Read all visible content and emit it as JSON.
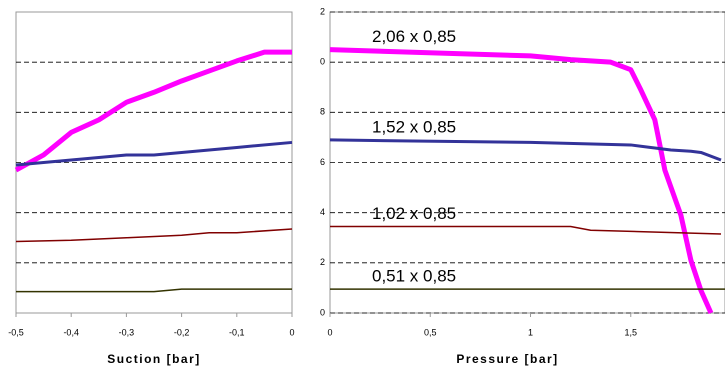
{
  "chart_data": [
    {
      "type": "line",
      "x_label": "Suction [bar]",
      "xlim": [
        -0.5,
        0
      ],
      "ylim": [
        0,
        12
      ],
      "xticks": [
        {
          "value": -0.5,
          "label": "-0,5"
        },
        {
          "value": -0.4,
          "label": "-0,4"
        },
        {
          "value": -0.3,
          "label": "-0,3"
        },
        {
          "value": -0.2,
          "label": "-0,2"
        },
        {
          "value": -0.1,
          "label": "-0,1"
        },
        0
      ],
      "yticks": [
        2,
        4,
        6,
        8,
        10
      ],
      "ytick_labels": false,
      "grid": true,
      "series": [
        {
          "color": "#ff00ff",
          "x": [
            -0.5,
            -0.45,
            -0.4,
            -0.35,
            -0.3,
            -0.25,
            -0.2,
            -0.15,
            -0.1,
            -0.05,
            0
          ],
          "values": [
            5.7,
            6.3,
            7.2,
            7.7,
            8.4,
            8.8,
            9.25,
            9.65,
            10.05,
            10.4,
            10.4
          ]
        },
        {
          "color": "#333399",
          "x": [
            -0.5,
            -0.4,
            -0.3,
            -0.25,
            -0.2,
            -0.1,
            0
          ],
          "values": [
            5.9,
            6.1,
            6.3,
            6.3,
            6.4,
            6.6,
            6.8
          ]
        },
        {
          "color": "#800000",
          "x": [
            -0.5,
            -0.4,
            -0.3,
            -0.2,
            -0.15,
            -0.1,
            0
          ],
          "values": [
            2.85,
            2.9,
            3.0,
            3.1,
            3.2,
            3.2,
            3.35
          ]
        },
        {
          "color": "#333300",
          "x": [
            -0.5,
            -0.25,
            -0.2,
            0
          ],
          "values": [
            0.85,
            0.85,
            0.95,
            0.95
          ]
        }
      ]
    },
    {
      "type": "line",
      "x_label": "Pressure [bar]",
      "xlim": [
        0,
        1.97
      ],
      "ylim": [
        0,
        12
      ],
      "xticks": [
        0,
        {
          "value": 0.5,
          "label": "0,5"
        },
        1,
        {
          "value": 1.5,
          "label": "1,5"
        }
      ],
      "yticks": [
        0,
        2,
        4,
        6,
        8,
        {
          "value": 10,
          "label": "0"
        },
        {
          "value": 12,
          "label": "2"
        }
      ],
      "ytick_labels": true,
      "grid": true,
      "series": [
        {
          "name": "2,06 x 0,85",
          "color": "#ff00ff",
          "x": [
            0,
            1.0,
            1.2,
            1.4,
            1.5,
            1.55,
            1.62,
            1.67,
            1.75,
            1.8,
            1.85,
            1.9
          ],
          "values": [
            10.5,
            10.25,
            10.1,
            10.0,
            9.7,
            8.9,
            7.7,
            5.7,
            3.9,
            2.1,
            0.9,
            0
          ]
        },
        {
          "name": "1,52 x 0,85",
          "color": "#333399",
          "x": [
            0,
            1.0,
            1.5,
            1.6,
            1.7,
            1.8,
            1.85,
            1.95
          ],
          "values": [
            6.9,
            6.8,
            6.7,
            6.6,
            6.5,
            6.45,
            6.4,
            6.1
          ]
        },
        {
          "name": "1,02 x 0,85",
          "color": "#800000",
          "x": [
            0,
            1.2,
            1.3,
            1.95
          ],
          "values": [
            3.45,
            3.45,
            3.3,
            3.15
          ]
        },
        {
          "name": "0,51 x 0,85",
          "color": "#333300",
          "x": [
            0,
            1.97
          ],
          "values": [
            0.95,
            0.95
          ]
        }
      ]
    }
  ]
}
